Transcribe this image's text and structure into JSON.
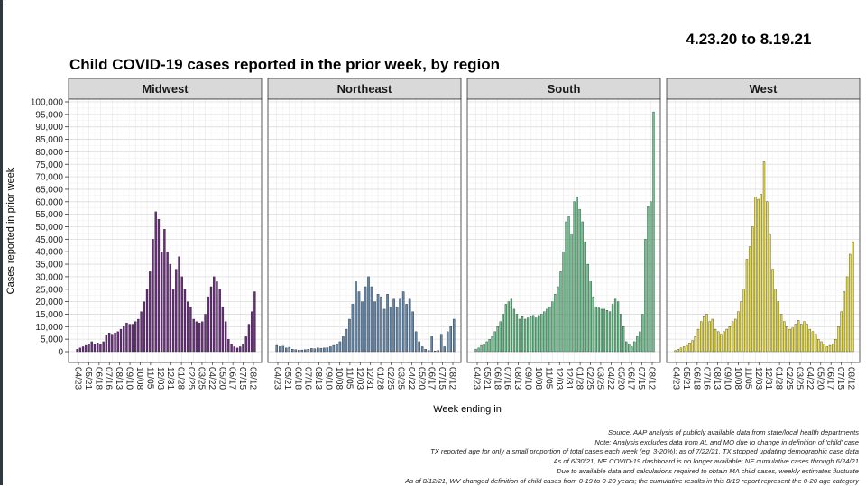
{
  "header": {
    "date_range": "4.23.20 to 8.19.21",
    "title": "Child COVID-19 cases reported in the prior week, by region"
  },
  "notes": [
    "Source: AAP analysis of publicly available data from state/local health departments",
    "Note: Analysis excludes data from AL and MO due to change in definition of 'child' case",
    "TX reported age for only a small proportion of total cases each week (eg. 3-20%); as of 7/22/21, TX stopped updating demographic case data",
    "As of 6/30/21, NE COVID-19 dashboard is no longer available; NE cumulative cases through 6/24/21",
    "Due to available data and calculations required to obtain MA child cases, weekly estimates fluctuate",
    "As of 8/12/21, WV changed definition of child cases from 0-19 to 0-20 years; the cumulative results in this 8/19 report represent the 0-20 age category"
  ],
  "chart_data": {
    "type": "bar",
    "title": "Child COVID-19 cases reported in the prior week, by region",
    "xlabel": "Week ending in",
    "ylabel": "Cases reported in prior week",
    "ylim": [
      0,
      100000
    ],
    "yticks": [
      0,
      5000,
      10000,
      15000,
      20000,
      25000,
      30000,
      35000,
      40000,
      45000,
      50000,
      55000,
      60000,
      65000,
      70000,
      75000,
      80000,
      85000,
      90000,
      95000,
      100000
    ],
    "ytick_labels": [
      "0",
      "5,000",
      "10,000",
      "15,000",
      "20,000",
      "25,000",
      "30,000",
      "35,000",
      "40,000",
      "45,000",
      "50,000",
      "55,000",
      "60,000",
      "65,000",
      "70,000",
      "75,000",
      "80,000",
      "85,000",
      "90,000",
      "95,000",
      "100,000"
    ],
    "xtick_labels": [
      "04/23",
      "05/21",
      "06/18",
      "07/16",
      "08/13",
      "09/10",
      "10/08",
      "11/05",
      "12/03",
      "12/31",
      "01/28",
      "02/25",
      "03/25",
      "04/22",
      "05/20",
      "06/17",
      "07/15",
      "08/12"
    ],
    "grid": true,
    "facets": [
      {
        "name": "Midwest",
        "color": "#6b2a80",
        "values": [
          1000,
          1500,
          2000,
          2500,
          3000,
          4000,
          3000,
          3500,
          3000,
          4000,
          6500,
          7500,
          7000,
          7500,
          8000,
          9000,
          10000,
          11500,
          11000,
          11000,
          12000,
          13000,
          16000,
          20000,
          25000,
          32000,
          45000,
          56000,
          53000,
          40000,
          49000,
          40000,
          35000,
          25000,
          33000,
          38000,
          30000,
          25000,
          20000,
          18000,
          13000,
          12000,
          11500,
          12000,
          15000,
          22000,
          26000,
          30000,
          28000,
          25000,
          18000,
          12000,
          5000,
          3000,
          2000,
          1500,
          2000,
          3000,
          6000,
          11000,
          16000,
          24000
        ]
      },
      {
        "name": "Northeast",
        "color": "#5f86ac",
        "values": [
          2500,
          2000,
          2200,
          1500,
          1800,
          1000,
          800,
          600,
          700,
          800,
          1000,
          1300,
          1200,
          1500,
          1400,
          1500,
          1600,
          2000,
          2500,
          3000,
          4000,
          6000,
          9000,
          13000,
          19000,
          28000,
          24000,
          20000,
          26000,
          30000,
          26000,
          20000,
          23000,
          22000,
          17000,
          23000,
          18000,
          21000,
          18000,
          21000,
          24000,
          19000,
          21000,
          16000,
          8000,
          4000,
          2000,
          1000,
          500,
          6000,
          300,
          500,
          7000,
          2000,
          8000,
          10000,
          13000
        ]
      },
      {
        "name": "South",
        "color": "#62c98a",
        "values": [
          1000,
          1500,
          2500,
          3000,
          4000,
          5000,
          6000,
          8000,
          10000,
          12000,
          15000,
          19000,
          20000,
          21000,
          17000,
          15000,
          13000,
          14000,
          13000,
          13500,
          14000,
          14500,
          13500,
          14500,
          15000,
          16000,
          17000,
          18000,
          20000,
          23000,
          26000,
          32000,
          40000,
          52000,
          54000,
          47000,
          60000,
          62000,
          57000,
          52000,
          44000,
          35000,
          28000,
          22000,
          18000,
          17500,
          17000,
          17000,
          16500,
          16000,
          19000,
          21000,
          20000,
          15000,
          10000,
          4000,
          3000,
          2000,
          4000,
          6000,
          8000,
          15000,
          45000,
          58000,
          60000,
          96000
        ]
      },
      {
        "name": "West",
        "color": "#f1e438",
        "values": [
          500,
          1000,
          1500,
          2000,
          2500,
          3500,
          4500,
          6000,
          9000,
          12000,
          14000,
          15000,
          12000,
          13000,
          9000,
          8000,
          7000,
          8000,
          9000,
          10000,
          12000,
          13000,
          16000,
          20000,
          25000,
          37000,
          42000,
          50000,
          62000,
          61000,
          63000,
          76000,
          60000,
          47000,
          33000,
          25000,
          20000,
          15000,
          12000,
          10000,
          9000,
          9500,
          11000,
          12500,
          11000,
          12000,
          11000,
          9000,
          8000,
          7000,
          5000,
          4000,
          3000,
          2000,
          2500,
          3000,
          5000,
          10000,
          16000,
          24000,
          30000,
          39000,
          44000
        ]
      }
    ]
  }
}
